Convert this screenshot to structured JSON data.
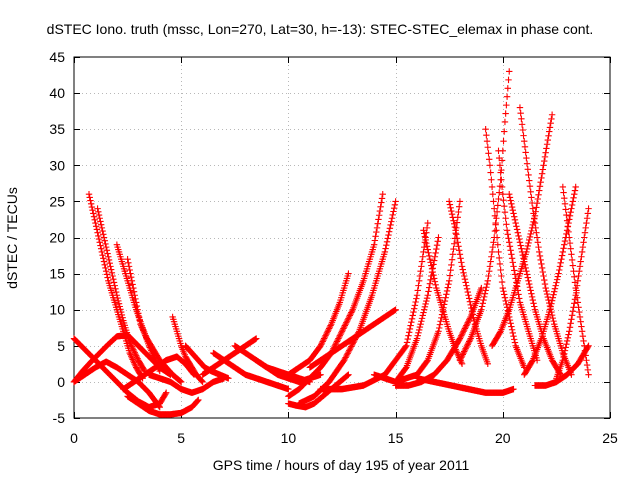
{
  "chart_data": {
    "type": "scatter",
    "title": "dSTEC Iono. truth (mssc, Lon=270, Lat=30, h=-13): STEC-STEC_elemax in phase cont.",
    "xlabel": "GPS time / hours of day 195 of year 2011",
    "ylabel": "dSTEC  / TECUs",
    "xlim": [
      0,
      25
    ],
    "ylim": [
      -5,
      45
    ],
    "xticks": [
      0,
      5,
      10,
      15,
      20,
      25
    ],
    "yticks": [
      -5,
      0,
      5,
      10,
      15,
      20,
      25,
      30,
      35,
      40,
      45
    ],
    "grid": true,
    "marker": "plus",
    "color": "#ff0000",
    "series": [
      {
        "x": [
          0.0,
          0.5,
          1.0,
          1.5,
          2.0,
          2.5,
          3.0,
          3.5,
          4.0,
          4.3
        ],
        "y": [
          6.0,
          4.5,
          3.0,
          1.5,
          0.0,
          -1.5,
          -2.7,
          -3.5,
          -3.0,
          -1.5
        ]
      },
      {
        "x": [
          0.0,
          0.4,
          0.8,
          1.2,
          1.6,
          2.0,
          2.5,
          3.0,
          3.5,
          4.0,
          4.5
        ],
        "y": [
          0.0,
          1.5,
          2.8,
          4.0,
          5.2,
          6.3,
          6.5,
          5.0,
          3.5,
          2.0,
          1.0
        ]
      },
      {
        "x": [
          0.0,
          0.5,
          1.0,
          1.5,
          2.0,
          2.5,
          3.0,
          3.5,
          4.0
        ],
        "y": [
          0.0,
          1.0,
          2.0,
          2.8,
          2.0,
          1.0,
          0.0,
          -1.5,
          -3.5
        ]
      },
      {
        "x": [
          0.7,
          1.0,
          1.3,
          1.6,
          2.0,
          2.3,
          2.6,
          2.9,
          3.2
        ],
        "y": [
          26.0,
          22.0,
          18.0,
          14.0,
          10.0,
          7.0,
          4.0,
          2.0,
          0.5
        ]
      },
      {
        "x": [
          1.1,
          1.4,
          1.7,
          2.0,
          2.3,
          2.6,
          3.0,
          3.3
        ],
        "y": [
          24.0,
          20.0,
          16.0,
          12.0,
          8.5,
          5.5,
          3.0,
          1.5
        ]
      },
      {
        "x": [
          2.0,
          2.3,
          2.6,
          2.9,
          3.2,
          3.5,
          3.8,
          4.0
        ],
        "y": [
          19.0,
          16.0,
          13.0,
          10.0,
          7.5,
          5.0,
          3.0,
          1.5
        ]
      },
      {
        "x": [
          2.5,
          2.7,
          2.9,
          3.1,
          3.4,
          3.7,
          4.0,
          4.3,
          4.6,
          5.0
        ],
        "y": [
          17.0,
          14.0,
          11.0,
          8.0,
          6.0,
          4.5,
          3.0,
          2.0,
          1.0,
          0.0
        ]
      },
      {
        "x": [
          2.3,
          2.8,
          3.3,
          3.8,
          4.3,
          4.8,
          5.2,
          5.6
        ],
        "y": [
          -1.0,
          0.0,
          1.0,
          2.0,
          3.0,
          3.5,
          2.5,
          1.0
        ]
      },
      {
        "x": [
          2.5,
          3.0,
          3.5,
          4.0,
          4.5,
          5.0,
          5.5,
          5.8
        ],
        "y": [
          -2.0,
          -3.0,
          -4.0,
          -4.5,
          -4.5,
          -4.3,
          -3.5,
          -2.5
        ]
      },
      {
        "x": [
          3.5,
          4.0,
          4.5,
          5.0,
          5.5,
          6.0,
          6.5,
          7.0
        ],
        "y": [
          1.0,
          0.5,
          0.0,
          -1.0,
          -1.5,
          -1.0,
          0.0,
          0.5
        ]
      },
      {
        "x": [
          4.6,
          4.8,
          5.0,
          5.2,
          5.4,
          5.7,
          6.0
        ],
        "y": [
          9.0,
          7.0,
          5.0,
          3.5,
          2.5,
          1.0,
          0.0
        ]
      },
      {
        "x": [
          5.2,
          5.5,
          5.8,
          6.1,
          6.4,
          6.8,
          7.2
        ],
        "y": [
          5.0,
          4.0,
          3.0,
          2.0,
          1.5,
          1.0,
          0.5
        ]
      },
      {
        "x": [
          6.0,
          6.5,
          7.0,
          7.5,
          8.0,
          8.5
        ],
        "y": [
          1.0,
          2.0,
          3.0,
          4.0,
          5.0,
          6.0
        ]
      },
      {
        "x": [
          6.5,
          7.0,
          7.5,
          8.0,
          8.5,
          9.0,
          9.5,
          10.0
        ],
        "y": [
          4.0,
          3.0,
          2.0,
          1.0,
          0.5,
          0.0,
          -0.5,
          -1.0
        ]
      },
      {
        "x": [
          7.5,
          8.0,
          8.5,
          9.0,
          9.5,
          10.0,
          10.5,
          11.0
        ],
        "y": [
          5.0,
          4.0,
          3.0,
          2.0,
          1.5,
          1.0,
          0.5,
          0.0
        ]
      },
      {
        "x": [
          8.5,
          9.0,
          9.5,
          10.0,
          10.5,
          11.0,
          11.5
        ],
        "y": [
          3.0,
          2.0,
          1.0,
          0.5,
          0.0,
          0.5,
          1.0
        ]
      },
      {
        "x": [
          10.0,
          10.4,
          10.8,
          11.2,
          11.6,
          12.0,
          12.4,
          12.8
        ],
        "y": [
          -3.0,
          -3.3,
          -3.5,
          -3.0,
          -2.0,
          -1.0,
          0.0,
          1.0
        ]
      },
      {
        "x": [
          10.0,
          10.5,
          11.0,
          11.5,
          12.0,
          12.4,
          12.8
        ],
        "y": [
          1.0,
          2.0,
          3.0,
          5.0,
          8.0,
          11.0,
          15.0
        ]
      },
      {
        "x": [
          10.0,
          10.5,
          11.0,
          11.5,
          12.0,
          12.5,
          13.0,
          13.5,
          14.0,
          14.4
        ],
        "y": [
          -2.0,
          -1.0,
          0.5,
          2.0,
          4.0,
          7.0,
          10.0,
          14.0,
          19.0,
          26.0
        ]
      },
      {
        "x": [
          10.5,
          11.2,
          11.9,
          12.6,
          13.3,
          13.9,
          14.5,
          15.0
        ],
        "y": [
          -3.0,
          -2.0,
          0.0,
          3.0,
          7.0,
          12.0,
          18.0,
          25.0
        ]
      },
      {
        "x": [
          11.0,
          11.5,
          12.0,
          12.5,
          13.0,
          13.5,
          14.0,
          14.5,
          15.0
        ],
        "y": [
          2.0,
          3.0,
          4.0,
          5.0,
          6.0,
          7.0,
          8.0,
          9.0,
          10.0
        ]
      },
      {
        "x": [
          11.5,
          12.5,
          13.5,
          14.5,
          15.5,
          16.0,
          16.5
        ],
        "y": [
          -1.0,
          -1.0,
          -0.5,
          1.0,
          5.0,
          12.0,
          22.0
        ]
      },
      {
        "x": [
          14.0,
          14.5,
          15.0,
          15.5,
          16.0,
          16.5,
          17.0
        ],
        "y": [
          1.0,
          0.5,
          0.0,
          2.0,
          6.0,
          12.0,
          20.0
        ]
      },
      {
        "x": [
          15.0,
          15.5,
          16.0,
          16.5,
          17.0,
          17.5,
          18.0
        ],
        "y": [
          0.0,
          0.5,
          1.0,
          3.0,
          7.0,
          14.0,
          25.0
        ]
      },
      {
        "x": [
          15.0,
          15.6,
          16.2,
          16.8,
          17.4,
          18.0,
          18.5,
          19.0
        ],
        "y": [
          -0.5,
          -0.5,
          0.0,
          1.0,
          3.0,
          6.0,
          9.0,
          13.0
        ]
      },
      {
        "x": [
          16.3,
          16.6,
          16.9,
          17.2,
          17.5,
          17.8,
          18.1
        ],
        "y": [
          21.0,
          17.0,
          13.0,
          10.0,
          7.0,
          4.5,
          2.5
        ]
      },
      {
        "x": [
          17.5,
          17.8,
          18.1,
          18.4,
          18.7,
          19.0,
          19.3
        ],
        "y": [
          25.0,
          21.0,
          16.0,
          12.0,
          8.0,
          5.0,
          2.5
        ]
      },
      {
        "x": [
          16.0,
          16.8,
          17.6,
          18.4,
          19.2,
          20.0,
          20.5
        ],
        "y": [
          0.5,
          0.0,
          -0.5,
          -1.0,
          -1.5,
          -1.5,
          -1.0
        ]
      },
      {
        "x": [
          18.0,
          18.5,
          19.0,
          19.3,
          19.6,
          19.9,
          20.1,
          20.3
        ],
        "y": [
          3.0,
          6.0,
          10.0,
          14.0,
          20.0,
          28.0,
          36.0,
          43.0
        ]
      },
      {
        "x": [
          19.2,
          19.4,
          19.6,
          19.8,
          20.0,
          20.3,
          20.6,
          21.0
        ],
        "y": [
          35.0,
          30.0,
          24.0,
          18.0,
          13.0,
          9.0,
          5.0,
          2.0
        ]
      },
      {
        "x": [
          19.8,
          20.0,
          20.2,
          20.5,
          20.8,
          21.2,
          21.6
        ],
        "y": [
          32.0,
          26.0,
          21.0,
          16.0,
          11.0,
          7.0,
          3.0
        ]
      },
      {
        "x": [
          19.5,
          19.9,
          20.3,
          20.7,
          21.1,
          21.5,
          21.9,
          22.3
        ],
        "y": [
          5.0,
          7.0,
          10.0,
          14.0,
          18.0,
          23.0,
          30.0,
          37.0
        ]
      },
      {
        "x": [
          20.3,
          20.6,
          20.9,
          21.2,
          21.5,
          21.9,
          22.3,
          22.7
        ],
        "y": [
          26.0,
          22.0,
          18.0,
          14.0,
          10.0,
          6.0,
          3.0,
          1.0
        ]
      },
      {
        "x": [
          20.8,
          21.1,
          21.4,
          21.7,
          22.0,
          22.4,
          22.8,
          23.2
        ],
        "y": [
          38.0,
          31.0,
          24.0,
          18.0,
          13.0,
          8.0,
          4.0,
          1.0
        ]
      },
      {
        "x": [
          21.0,
          21.4,
          21.8,
          22.2,
          22.6,
          23.0,
          23.4
        ],
        "y": [
          1.0,
          3.0,
          6.0,
          10.0,
          15.0,
          21.0,
          27.0
        ]
      },
      {
        "x": [
          22.8,
          23.1,
          23.4,
          23.7,
          24.0
        ],
        "y": [
          27.0,
          20.0,
          13.0,
          7.0,
          1.0
        ]
      },
      {
        "x": [
          22.5,
          22.8,
          23.1,
          23.4,
          23.7,
          24.0
        ],
        "y": [
          0.5,
          3.0,
          7.0,
          12.0,
          18.0,
          24.0
        ]
      },
      {
        "x": [
          21.5,
          22.0,
          22.5,
          23.0,
          23.5,
          24.0
        ],
        "y": [
          -0.5,
          -0.5,
          0.0,
          1.0,
          2.5,
          5.0
        ]
      }
    ]
  }
}
